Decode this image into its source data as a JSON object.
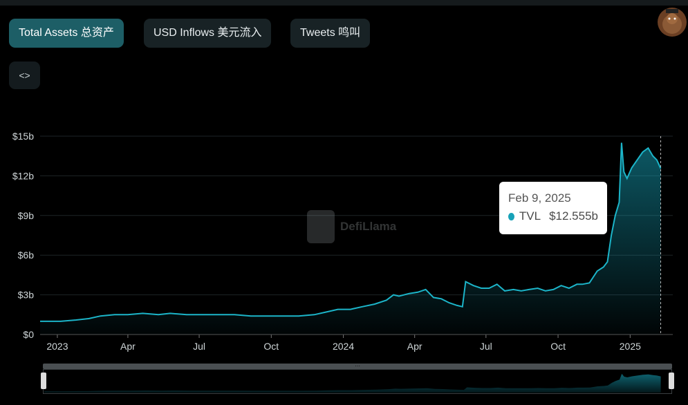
{
  "tabs": [
    {
      "label": "Total Assets  总资产",
      "active": true
    },
    {
      "label": "USD Inflows  美元流入",
      "active": false
    },
    {
      "label": "Tweets  鸣叫",
      "active": false
    }
  ],
  "toolbar": {
    "embed_icon": "<>"
  },
  "watermark": {
    "text": "DefiLlama"
  },
  "tooltip": {
    "date": "Feb 9, 2025",
    "series": "TVL",
    "value": "$12.555b"
  },
  "colors": {
    "accent": "#17a2b8",
    "tab_active": "#1d5e66",
    "tab_inactive": "#182225"
  },
  "chart_data": {
    "type": "area",
    "title": "",
    "xlabel": "",
    "ylabel": "",
    "ylim": [
      0,
      15
    ],
    "yticks": [
      0,
      3,
      6,
      9,
      12,
      15
    ],
    "ytick_labels": [
      "$0",
      "$3b",
      "$6b",
      "$9b",
      "$12b",
      "$15b"
    ],
    "xtick_labels": [
      "2023",
      "Apr",
      "Jul",
      "Oct",
      "2024",
      "Apr",
      "Jul",
      "Oct",
      "2025"
    ],
    "xtick_dates": [
      "2023-01-01",
      "2023-04-01",
      "2023-07-01",
      "2023-10-01",
      "2024-01-01",
      "2024-04-01",
      "2024-07-01",
      "2024-10-01",
      "2025-01-01"
    ],
    "xlim": [
      "2022-12-10",
      "2025-02-20"
    ],
    "grid": true,
    "legend": "none",
    "series": [
      {
        "name": "TVL",
        "x": [
          "2022-12-10",
          "2023-01-05",
          "2023-01-25",
          "2023-02-10",
          "2023-02-25",
          "2023-03-15",
          "2023-04-01",
          "2023-04-20",
          "2023-05-10",
          "2023-05-25",
          "2023-06-15",
          "2023-07-05",
          "2023-07-25",
          "2023-08-15",
          "2023-09-05",
          "2023-09-25",
          "2023-10-15",
          "2023-11-05",
          "2023-11-25",
          "2023-12-10",
          "2023-12-25",
          "2024-01-10",
          "2024-01-25",
          "2024-02-10",
          "2024-02-25",
          "2024-03-05",
          "2024-03-12",
          "2024-03-25",
          "2024-04-05",
          "2024-04-15",
          "2024-04-25",
          "2024-05-05",
          "2024-05-15",
          "2024-05-25",
          "2024-06-01",
          "2024-06-05",
          "2024-06-15",
          "2024-06-25",
          "2024-07-05",
          "2024-07-15",
          "2024-07-25",
          "2024-08-05",
          "2024-08-15",
          "2024-08-25",
          "2024-09-05",
          "2024-09-15",
          "2024-09-25",
          "2024-10-05",
          "2024-10-15",
          "2024-10-25",
          "2024-11-01",
          "2024-11-10",
          "2024-11-20",
          "2024-11-28",
          "2024-12-03",
          "2024-12-08",
          "2024-12-13",
          "2024-12-18",
          "2024-12-21",
          "2024-12-24",
          "2024-12-28",
          "2025-01-03",
          "2025-01-10",
          "2025-01-17",
          "2025-01-24",
          "2025-01-30",
          "2025-02-04",
          "2025-02-09"
        ],
        "values": [
          1.0,
          1.0,
          1.1,
          1.2,
          1.4,
          1.5,
          1.5,
          1.6,
          1.5,
          1.6,
          1.5,
          1.5,
          1.5,
          1.5,
          1.4,
          1.4,
          1.4,
          1.4,
          1.5,
          1.7,
          1.9,
          1.9,
          2.1,
          2.3,
          2.6,
          3.0,
          2.9,
          3.1,
          3.2,
          3.4,
          2.8,
          2.7,
          2.4,
          2.2,
          2.1,
          4.0,
          3.7,
          3.5,
          3.5,
          3.8,
          3.3,
          3.4,
          3.3,
          3.4,
          3.5,
          3.3,
          3.4,
          3.7,
          3.5,
          3.8,
          3.8,
          3.9,
          4.8,
          5.1,
          5.5,
          7.5,
          9.0,
          10.0,
          14.5,
          12.3,
          11.8,
          12.6,
          13.2,
          13.8,
          14.1,
          13.5,
          13.2,
          12.555
        ]
      }
    ]
  }
}
